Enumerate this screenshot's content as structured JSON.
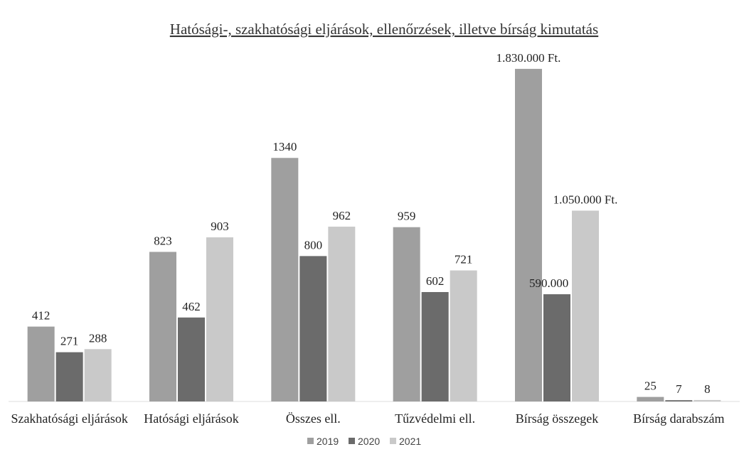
{
  "chart_data": [
    {
      "type": "bar",
      "title": "Hatósági-, szakhatósági eljárások, ellenőrzések, illetve bírság kimutatás",
      "categories": [
        "Szakhatósági eljárások",
        "Hatósági eljárások",
        "Összes ell.",
        "Tűzvédelmi ell.",
        "Bírság összegek",
        "Bírság darabszám"
      ],
      "series": [
        {
          "name": "2019",
          "color": "#9f9f9f",
          "values": [
            412,
            823,
            1340,
            959,
            null,
            25
          ]
        },
        {
          "name": "2020",
          "color": "#6b6b6b",
          "values": [
            271,
            462,
            800,
            602,
            null,
            7
          ]
        },
        {
          "name": "2021",
          "color": "#c9c9c9",
          "values": [
            288,
            903,
            962,
            721,
            null,
            8
          ]
        }
      ],
      "ylim": [
        0,
        1900
      ],
      "legend": "bottom"
    },
    {
      "type": "bar",
      "series": [
        {
          "color": "#9f9f9f",
          "values": [
            1830000
          ],
          "value_labels": [
            "1.830.000 Ft."
          ]
        },
        {
          "color": "#6b6b6b",
          "values": [
            590000
          ],
          "value_labels": [
            "590.000 Ft."
          ]
        },
        {
          "color": "#c9c9c9",
          "values": [
            1050000
          ],
          "value_labels": [
            "1.050.000 Ft."
          ]
        }
      ],
      "ylim": [
        0,
        1900000
      ]
    }
  ]
}
